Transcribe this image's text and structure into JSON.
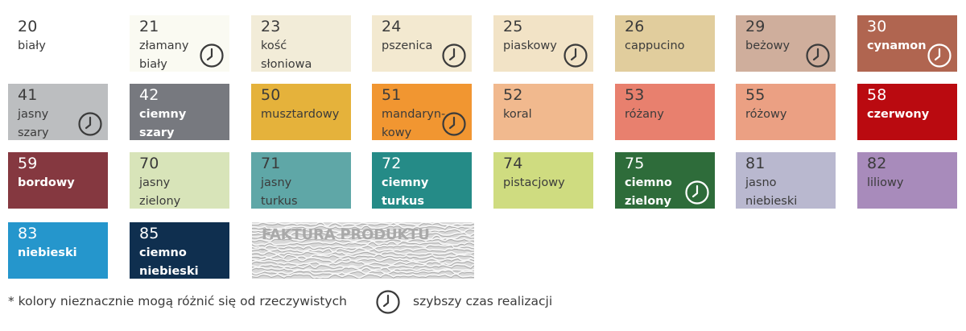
{
  "colors": [
    {
      "number": "20",
      "name": "biały",
      "bg": "#ffffff",
      "dark": false,
      "fast": false
    },
    {
      "number": "21",
      "name": "złamany\nbiały",
      "bg": "#fafaf2",
      "dark": false,
      "fast": true
    },
    {
      "number": "23",
      "name": "kość\nsłoniowa",
      "bg": "#f2ecd8",
      "dark": false,
      "fast": false
    },
    {
      "number": "24",
      "name": "pszenica",
      "bg": "#f3e9d0",
      "dark": false,
      "fast": true
    },
    {
      "number": "25",
      "name": "piaskowy",
      "bg": "#f2e3c6",
      "dark": false,
      "fast": true
    },
    {
      "number": "26",
      "name": "cappucino",
      "bg": "#e1cd9d",
      "dark": false,
      "fast": false
    },
    {
      "number": "29",
      "name": "beżowy",
      "bg": "#cfae9c",
      "dark": false,
      "fast": true
    },
    {
      "number": "30",
      "name": "cynamon",
      "bg": "#b06550",
      "dark": true,
      "fast": true
    },
    {
      "number": "41",
      "name": "jasny\nszary",
      "bg": "#bcbec0",
      "dark": false,
      "fast": true
    },
    {
      "number": "42",
      "name": "ciemny\nszary",
      "bg": "#77797f",
      "dark": true,
      "fast": false
    },
    {
      "number": "50",
      "name": "musztardowy",
      "bg": "#e5b23b",
      "dark": false,
      "fast": false
    },
    {
      "number": "51",
      "name": "mandaryn-\nkowy",
      "bg": "#f19631",
      "dark": false,
      "fast": true
    },
    {
      "number": "52",
      "name": "koral",
      "bg": "#f1b98e",
      "dark": false,
      "fast": false
    },
    {
      "number": "53",
      "name": "różany",
      "bg": "#e8806e",
      "dark": false,
      "fast": false
    },
    {
      "number": "55",
      "name": "różowy",
      "bg": "#eba083",
      "dark": false,
      "fast": false
    },
    {
      "number": "58",
      "name": "czerwony",
      "bg": "#ba0a10",
      "dark": true,
      "fast": false
    },
    {
      "number": "59",
      "name": "bordowy",
      "bg": "#853840",
      "dark": true,
      "fast": false
    },
    {
      "number": "70",
      "name": "jasny\nzielony",
      "bg": "#d8e4b9",
      "dark": false,
      "fast": false
    },
    {
      "number": "71",
      "name": "jasny\nturkus",
      "bg": "#5fa7a7",
      "dark": false,
      "fast": false
    },
    {
      "number": "72",
      "name": "ciemny\nturkus",
      "bg": "#258b87",
      "dark": true,
      "fast": false
    },
    {
      "number": "74",
      "name": "pistacjowy",
      "bg": "#cfdc80",
      "dark": false,
      "fast": false
    },
    {
      "number": "75",
      "name": "ciemno\nzielony",
      "bg": "#2e6c3a",
      "dark": true,
      "fast": true
    },
    {
      "number": "81",
      "name": "jasno\nniebieski",
      "bg": "#b9b8cf",
      "dark": false,
      "fast": false
    },
    {
      "number": "82",
      "name": "liliowy",
      "bg": "#a88bbb",
      "dark": false,
      "fast": false
    },
    {
      "number": "83",
      "name": "niebieski",
      "bg": "#2596cc",
      "dark": true,
      "fast": false
    },
    {
      "number": "85",
      "name": "ciemno\nniebieski",
      "bg": "#0f2f4f",
      "dark": true,
      "fast": false
    }
  ],
  "texture": {
    "label": "FAKTURA PRODUKTU"
  },
  "footer": {
    "note": "* kolory nieznacznie mogą różnić się od rzeczywistych",
    "legend": "szybszy czas realizacji"
  }
}
